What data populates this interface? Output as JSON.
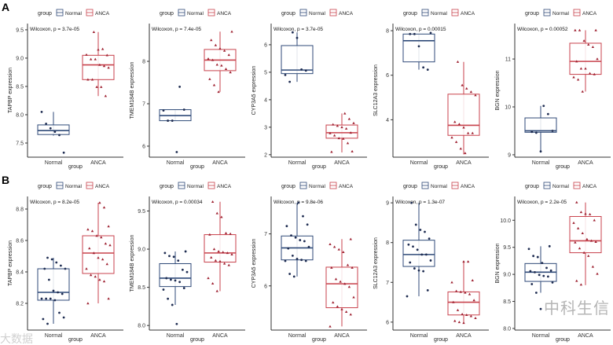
{
  "colors": {
    "normal": "#2f4a78",
    "anca": "#c8424c",
    "normal_point": "#1f2d52",
    "anca_point": "#9e2030",
    "axis": "#333333"
  },
  "legend": {
    "title": "group",
    "items": [
      "Normal",
      "ANCA"
    ]
  },
  "watermark": {
    "main": "中科生信",
    "left": "大数据"
  },
  "chart_data": [
    {
      "panel": "A",
      "type": "box",
      "title": "",
      "xlabel": "group",
      "ylabel": "TAPBP expression",
      "categories": [
        "Normal",
        "ANCA"
      ],
      "test": "Wilcoxon, p = 3.7e-05",
      "ylim": [
        7.25,
        9.61
      ],
      "yticks": [
        7.5,
        8.0,
        8.5,
        9.0,
        9.5
      ],
      "ytick_labels": [
        "7.5",
        "8.0",
        "8.5",
        "9.0",
        "9.5"
      ],
      "series": [
        {
          "name": "Normal",
          "box": {
            "low": 7.63,
            "q1": 7.65,
            "median": 7.72,
            "q3": 7.82,
            "high": 8.05
          },
          "points": [
            8.05,
            7.84,
            7.76,
            7.7,
            7.64,
            7.33
          ]
        },
        {
          "name": "ANCA",
          "box": {
            "low": 8.33,
            "q1": 8.62,
            "median": 8.88,
            "q3": 9.05,
            "high": 9.46
          },
          "points": [
            9.46,
            9.15,
            9.16,
            9.05,
            9.06,
            8.98,
            8.98,
            8.88,
            8.86,
            8.83,
            8.62,
            8.62,
            8.49,
            8.49,
            8.33
          ]
        }
      ]
    },
    {
      "panel": "",
      "type": "box",
      "title": "",
      "xlabel": "group",
      "ylabel": "TMEM184B expression",
      "categories": [
        "Normal",
        "ANCA"
      ],
      "test": "Wilcoxon, p = 7.4e-05",
      "ylim": [
        5.74,
        8.89
      ],
      "yticks": [
        6,
        7,
        8
      ],
      "ytick_labels": [
        "6",
        "7",
        "8"
      ],
      "series": [
        {
          "name": "Normal",
          "box": {
            "low": 6.6,
            "q1": 6.6,
            "median": 6.72,
            "q3": 6.86,
            "high": 6.86
          },
          "points": [
            7.4,
            6.86,
            6.84,
            6.6,
            6.6,
            5.86
          ]
        },
        {
          "name": "ANCA",
          "box": {
            "low": 7.28,
            "q1": 7.78,
            "median": 8.03,
            "q3": 8.28,
            "high": 8.7
          },
          "points": [
            8.7,
            8.5,
            8.38,
            8.3,
            8.25,
            8.15,
            8.06,
            8.03,
            7.92,
            7.9,
            7.82,
            7.74,
            7.58,
            7.44,
            7.28
          ]
        }
      ]
    },
    {
      "panel": "",
      "type": "box",
      "title": "",
      "xlabel": "group",
      "ylabel": "CYP3A5 expression",
      "categories": [
        "Normal",
        "ANCA"
      ],
      "test": "Wilcoxon, p = 3.7e-05",
      "ylim": [
        1.91,
        6.77
      ],
      "yticks": [
        2,
        3,
        4,
        5,
        6
      ],
      "ytick_labels": [
        "2",
        "3",
        "4",
        "5",
        "6"
      ],
      "series": [
        {
          "name": "Normal",
          "box": {
            "low": 4.65,
            "q1": 4.95,
            "median": 5.08,
            "q3": 5.97,
            "high": 6.45
          },
          "points": [
            6.45,
            6.25,
            5.1,
            5.06,
            4.9,
            4.65
          ]
        },
        {
          "name": "ANCA",
          "box": {
            "low": 2.08,
            "q1": 2.6,
            "median": 2.8,
            "q3": 3.08,
            "high": 3.5
          },
          "points": [
            3.5,
            3.3,
            3.15,
            3.1,
            3.05,
            3.0,
            2.95,
            2.8,
            2.78,
            2.7,
            2.6,
            2.58,
            2.42,
            2.12,
            2.1
          ]
        }
      ]
    },
    {
      "panel": "",
      "type": "box",
      "title": "",
      "xlabel": "group",
      "ylabel": "SLC12A3 expression",
      "categories": [
        "Normal",
        "ANCA"
      ],
      "test": "Wilcoxon, p = 0.00015",
      "ylim": [
        2.32,
        8.32
      ],
      "yticks": [
        4,
        6,
        8
      ],
      "ytick_labels": [
        "4",
        "6",
        "8"
      ],
      "series": [
        {
          "name": "Normal",
          "box": {
            "low": 6.25,
            "q1": 6.6,
            "median": 7.55,
            "q3": 7.85,
            "high": 7.85
          },
          "points": [
            7.9,
            7.85,
            7.85,
            7.3,
            6.35,
            6.25
          ]
        },
        {
          "name": "ANCA",
          "box": {
            "low": 2.45,
            "q1": 3.3,
            "median": 3.75,
            "q3": 5.15,
            "high": 6.6
          },
          "points": [
            6.6,
            5.55,
            5.4,
            5.25,
            5.1,
            3.9,
            3.8,
            3.65,
            3.4,
            3.4,
            3.2,
            3.0,
            2.7,
            2.5
          ]
        }
      ]
    },
    {
      "panel": "",
      "type": "box",
      "title": "",
      "xlabel": "group",
      "ylabel": "BGN expression",
      "categories": [
        "Normal",
        "ANCA"
      ],
      "test": "Wilcoxon, p = 0.00052",
      "ylim": [
        8.95,
        11.74
      ],
      "yticks": [
        9,
        10,
        11
      ],
      "ytick_labels": [
        "9",
        "10",
        "11"
      ],
      "series": [
        {
          "name": "Normal",
          "box": {
            "low": 9.07,
            "q1": 9.47,
            "median": 9.5,
            "q3": 9.77,
            "high": 10.02
          },
          "points": [
            10.02,
            9.85,
            9.5,
            9.48,
            9.46,
            9.07
          ]
        },
        {
          "name": "ANCA",
          "box": {
            "low": 10.32,
            "q1": 10.68,
            "median": 10.95,
            "q3": 11.33,
            "high": 11.6
          },
          "points": [
            11.6,
            11.6,
            11.6,
            11.38,
            11.3,
            11.25,
            11.0,
            10.95,
            10.8,
            10.8,
            10.7,
            10.68,
            10.62,
            10.57,
            10.32
          ]
        }
      ]
    },
    {
      "panel": "B",
      "type": "box",
      "title": "",
      "xlabel": "group",
      "ylabel": "TAPBP expression",
      "categories": [
        "Normal",
        "ANCA"
      ],
      "test": "Wilcoxon, p = 8.2e-05",
      "ylim": [
        8.03,
        8.88
      ],
      "yticks": [
        8.2,
        8.4,
        8.6,
        8.8
      ],
      "ytick_labels": [
        "8.2",
        "8.4",
        "8.6",
        "8.8"
      ],
      "series": [
        {
          "name": "Normal",
          "box": {
            "low": 8.07,
            "q1": 8.22,
            "median": 8.27,
            "q3": 8.42,
            "high": 8.49
          },
          "points": [
            8.49,
            8.48,
            8.46,
            8.44,
            8.42,
            8.42,
            8.35,
            8.28,
            8.27,
            8.26,
            8.23,
            8.23,
            8.23,
            8.22,
            8.14,
            8.11,
            8.1,
            8.07
          ]
        },
        {
          "name": "ANCA",
          "box": {
            "low": 8.2,
            "q1": 8.39,
            "median": 8.52,
            "q3": 8.63,
            "high": 8.84
          },
          "points": [
            8.84,
            8.81,
            8.69,
            8.67,
            8.66,
            8.63,
            8.62,
            8.58,
            8.57,
            8.55,
            8.52,
            8.49,
            8.48,
            8.45,
            8.42,
            8.38,
            8.37,
            8.35,
            8.34,
            8.23,
            8.2
          ]
        }
      ]
    },
    {
      "panel": "",
      "type": "box",
      "title": "",
      "xlabel": "group",
      "ylabel": "TMEM184B expression",
      "categories": [
        "Normal",
        "ANCA"
      ],
      "test": "Wilcoxon, p = 0.00034",
      "ylim": [
        7.94,
        9.69
      ],
      "yticks": [
        8.0,
        8.5,
        9.0,
        9.5
      ],
      "ytick_labels": [
        "8.0",
        "8.5",
        "9.0",
        "9.5"
      ],
      "series": [
        {
          "name": "Normal",
          "box": {
            "low": 8.27,
            "q1": 8.51,
            "median": 8.62,
            "q3": 8.81,
            "high": 8.97
          },
          "points": [
            8.97,
            8.95,
            8.91,
            8.9,
            8.85,
            8.73,
            8.7,
            8.62,
            8.6,
            8.59,
            8.57,
            8.49,
            8.47,
            8.35,
            8.27,
            8.02
          ]
        },
        {
          "name": "ANCA",
          "box": {
            "low": 8.45,
            "q1": 8.83,
            "median": 8.95,
            "q3": 9.19,
            "high": 9.62
          },
          "points": [
            9.62,
            9.47,
            9.42,
            9.21,
            9.2,
            9.19,
            9.0,
            8.97,
            8.96,
            8.95,
            8.93,
            8.89,
            8.85,
            8.84,
            8.81,
            8.79,
            8.62,
            8.55,
            8.45
          ]
        }
      ]
    },
    {
      "panel": "",
      "type": "box",
      "title": "",
      "xlabel": "group",
      "ylabel": "CYP3A5 expression",
      "categories": [
        "Normal",
        "ANCA"
      ],
      "test": "Wilcoxon, p = 9.8e-06",
      "ylim": [
        5.15,
        7.72
      ],
      "yticks": [
        6,
        7
      ],
      "ytick_labels": [
        "6",
        "7"
      ],
      "series": [
        {
          "name": "Normal",
          "box": {
            "low": 6.18,
            "q1": 6.5,
            "median": 6.73,
            "q3": 6.96,
            "high": 7.6
          },
          "points": [
            7.6,
            7.34,
            7.18,
            7.15,
            6.97,
            6.93,
            6.88,
            6.86,
            6.75,
            6.72,
            6.58,
            6.52,
            6.5,
            6.48,
            6.48,
            6.23,
            6.18
          ]
        },
        {
          "name": "ANCA",
          "box": {
            "low": 5.22,
            "q1": 5.58,
            "median": 6.04,
            "q3": 6.36,
            "high": 6.9
          },
          "points": [
            6.9,
            6.8,
            6.75,
            6.7,
            6.65,
            6.4,
            6.35,
            6.35,
            6.13,
            6.08,
            6.04,
            5.98,
            5.78,
            5.68,
            5.6,
            5.55,
            5.5,
            5.45,
            5.22
          ]
        }
      ]
    },
    {
      "panel": "",
      "type": "box",
      "title": "",
      "xlabel": "group",
      "ylabel": "SLC12A3 expression",
      "categories": [
        "Normal",
        "ANCA"
      ],
      "test": "Wilcoxon, p = 1.3e-07",
      "ylim": [
        5.8,
        9.16
      ],
      "yticks": [
        6,
        7,
        8,
        9
      ],
      "ytick_labels": [
        "6",
        "7",
        "8",
        "9"
      ],
      "series": [
        {
          "name": "Normal",
          "box": {
            "low": 6.65,
            "q1": 7.4,
            "median": 7.7,
            "q3": 8.06,
            "high": 9.0
          },
          "points": [
            9.0,
            8.45,
            8.32,
            8.27,
            8.1,
            7.95,
            7.9,
            7.82,
            7.7,
            7.7,
            7.55,
            7.5,
            7.35,
            7.3,
            7.28,
            6.8,
            6.65
          ]
        },
        {
          "name": "ANCA",
          "box": {
            "low": 5.97,
            "q1": 6.18,
            "median": 6.5,
            "q3": 6.76,
            "high": 7.52
          },
          "points": [
            7.52,
            7.52,
            7.05,
            7.0,
            6.78,
            6.76,
            6.74,
            6.7,
            6.55,
            6.5,
            6.3,
            6.2,
            6.18,
            6.15,
            6.1,
            6.03,
            6.0,
            5.98
          ]
        }
      ]
    },
    {
      "panel": "",
      "type": "box",
      "title": "",
      "xlabel": "group",
      "ylabel": "BGN expression",
      "categories": [
        "Normal",
        "ANCA"
      ],
      "test": "Wilcoxon, p = 2.2e-05",
      "ylim": [
        7.97,
        10.44
      ],
      "yticks": [
        8.0,
        8.5,
        9.0,
        9.5,
        10.0
      ],
      "ytick_labels": [
        "8.0",
        "8.5",
        "9.0",
        "9.5",
        "10.0"
      ],
      "series": [
        {
          "name": "Normal",
          "box": {
            "low": 8.66,
            "q1": 8.87,
            "median": 9.04,
            "q3": 9.2,
            "high": 9.52
          },
          "points": [
            9.52,
            9.47,
            9.34,
            9.32,
            9.21,
            9.12,
            9.07,
            9.06,
            9.04,
            8.99,
            8.97,
            8.96,
            8.85,
            8.82,
            8.66,
            8.36
          ]
        },
        {
          "name": "ANCA",
          "box": {
            "low": 8.8,
            "q1": 9.4,
            "median": 9.62,
            "q3": 10.07,
            "high": 10.33
          },
          "points": [
            10.33,
            10.15,
            10.12,
            10.11,
            10.0,
            9.95,
            9.85,
            9.76,
            9.65,
            9.62,
            9.6,
            9.59,
            9.48,
            9.4,
            9.34,
            9.14,
            9.01,
            8.88,
            8.81
          ]
        }
      ]
    }
  ]
}
